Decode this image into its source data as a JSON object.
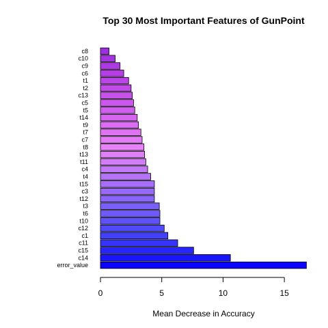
{
  "chart_data": {
    "type": "bar",
    "orientation": "horizontal",
    "title": "Top 30 Most Important Features of GunPoint",
    "xlabel": "Mean Decrease in Accuracy",
    "ylabel": "",
    "xlim": [
      0,
      17
    ],
    "xticks": [
      0,
      5,
      10,
      15
    ],
    "categories": [
      "c8",
      "c10",
      "c9",
      "c6",
      "t1",
      "t2",
      "c13",
      "c5",
      "t5",
      "t14",
      "t9",
      "t7",
      "c7",
      "t8",
      "t13",
      "t11",
      "c4",
      "t4",
      "t15",
      "c3",
      "t12",
      "t3",
      "t6",
      "t10",
      "c12",
      "c1",
      "c11",
      "c15",
      "c14",
      "error_value"
    ],
    "values": [
      0.7,
      1.2,
      1.6,
      1.9,
      2.3,
      2.5,
      2.6,
      2.7,
      2.8,
      3.0,
      3.1,
      3.3,
      3.4,
      3.55,
      3.6,
      3.7,
      3.85,
      4.1,
      4.4,
      4.4,
      4.4,
      4.8,
      4.85,
      4.85,
      5.2,
      5.5,
      6.3,
      7.6,
      10.6,
      16.8
    ],
    "colors": [
      "#9a2ee0",
      "#a433e2",
      "#ad39e4",
      "#b53ee6",
      "#bb44e8",
      "#c24aea",
      "#c851ec",
      "#cd57ee",
      "#d25ef0",
      "#d765f2",
      "#dc6cf3",
      "#e072f5",
      "#e47af6",
      "#e781f8",
      "#e080f8",
      "#d27cf8",
      "#c378f8",
      "#b573f8",
      "#a66ef9",
      "#986afa",
      "#8a65fb",
      "#7b5ffb",
      "#6d59fc",
      "#5f52fc",
      "#514afd",
      "#4340fd",
      "#3534fe",
      "#2826fe",
      "#1a16ff",
      "#0c04ff"
    ]
  }
}
